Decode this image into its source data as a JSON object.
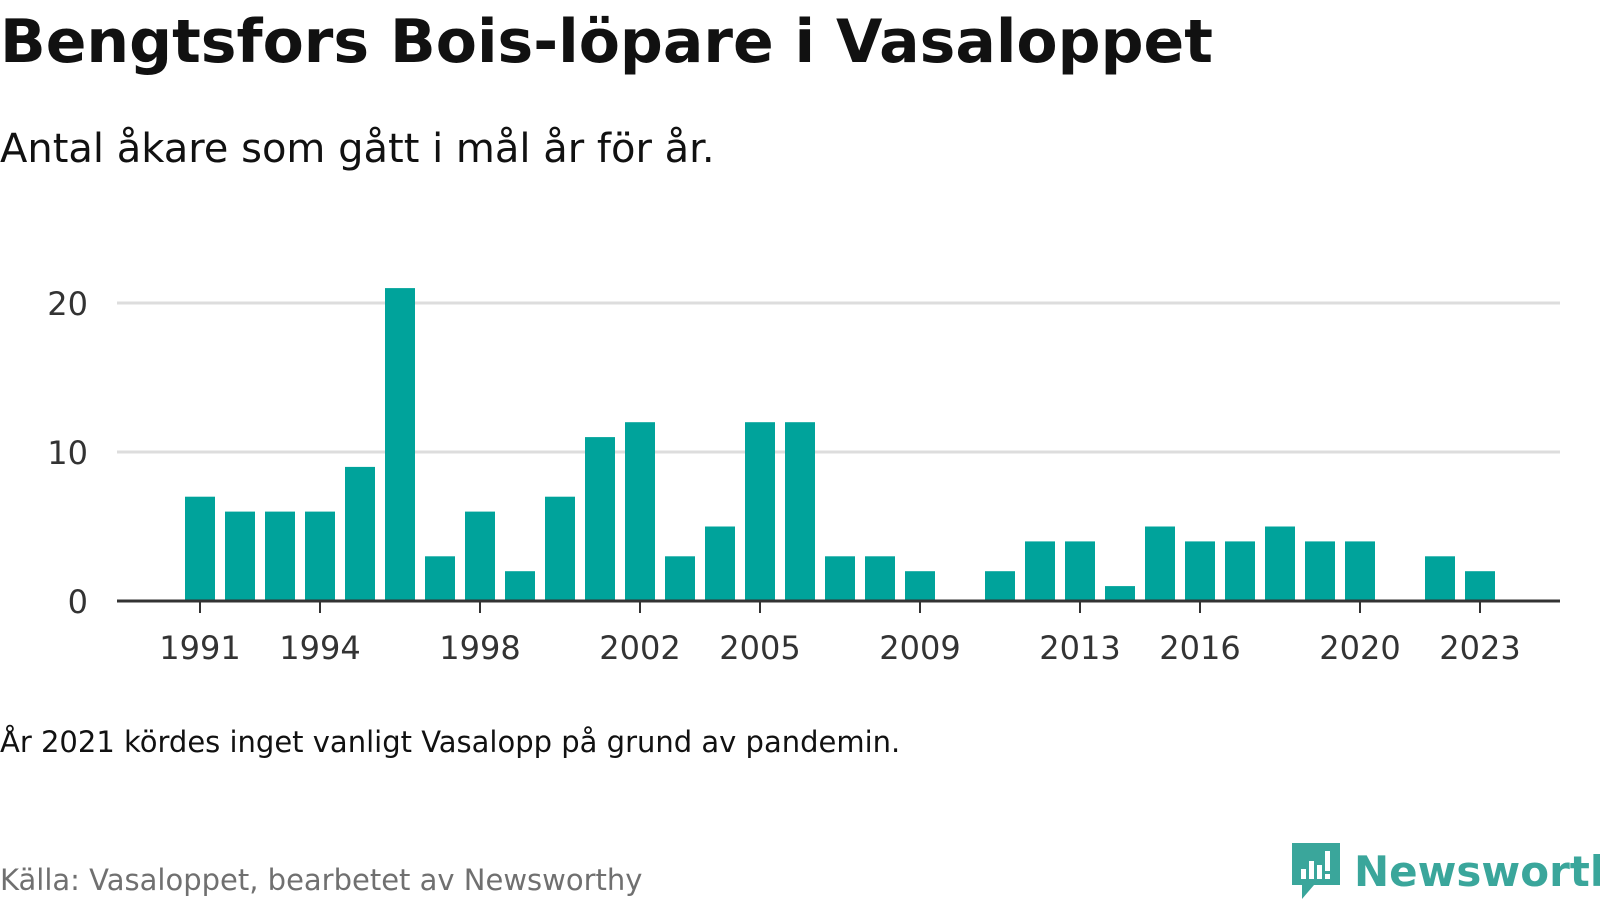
{
  "header": {
    "title": "Bengtsfors Bois-löpare i Vasaloppet",
    "subtitle": "Antal åkare som gått i mål år för år."
  },
  "footer": {
    "note": "År 2021 kördes inget vanligt Vasalopp på grund av pandemin.",
    "source": "Källa: Vasaloppet, bearbetet av Newsworthy",
    "brand": "Newsworthy",
    "brand_icon": "newsworthy-logo-icon"
  },
  "colors": {
    "bar": "#00a39b",
    "grid": "#dddddd",
    "axis": "#333333",
    "brand": "#3aa69b"
  },
  "chart_data": {
    "type": "bar",
    "title": "Bengtsfors Bois-löpare i Vasaloppet",
    "subtitle": "Antal åkare som gått i mål år för år.",
    "xlabel": "",
    "ylabel": "",
    "ylim": [
      0,
      22
    ],
    "yticks": [
      0,
      10,
      20
    ],
    "xticks": [
      "1991",
      "1994",
      "1998",
      "2002",
      "2005",
      "2009",
      "2013",
      "2016",
      "2020",
      "2023"
    ],
    "grid": true,
    "categories": [
      "1991",
      "1992",
      "1993",
      "1994",
      "1995",
      "1996",
      "1997",
      "1998",
      "1999",
      "2000",
      "2001",
      "2002",
      "2003",
      "2004",
      "2005",
      "2006",
      "2007",
      "2008",
      "2009",
      "2010",
      "2011",
      "2012",
      "2013",
      "2014",
      "2015",
      "2016",
      "2017",
      "2018",
      "2019",
      "2020",
      "2021",
      "2022",
      "2023"
    ],
    "values": [
      7,
      6,
      6,
      6,
      9,
      21,
      3,
      6,
      2,
      7,
      11,
      12,
      3,
      5,
      12,
      12,
      3,
      3,
      2,
      null,
      2,
      4,
      4,
      1,
      5,
      4,
      4,
      5,
      4,
      4,
      null,
      3,
      2
    ]
  }
}
